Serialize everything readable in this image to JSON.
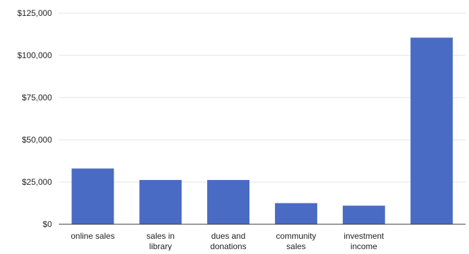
{
  "chart_data": {
    "type": "bar",
    "title": "",
    "xlabel": "",
    "ylabel": "",
    "categories": [
      "online sales",
      "sales in library",
      "dues and donations",
      "community sales",
      "investment income",
      ""
    ],
    "category_lines": [
      [
        "online sales"
      ],
      [
        "sales in",
        "library"
      ],
      [
        "dues and",
        "donations"
      ],
      [
        "community",
        "sales"
      ],
      [
        "investment",
        "income"
      ],
      []
    ],
    "values": [
      33000,
      26200,
      26200,
      12500,
      11000,
      110500
    ],
    "ylim": [
      0,
      125000
    ],
    "yticks": [
      0,
      25000,
      50000,
      75000,
      100000,
      125000
    ],
    "ytick_labels": [
      "$0",
      "$25,000",
      "$50,000",
      "$75,000",
      "$100,000",
      "$125,000"
    ],
    "grid": true,
    "legend": "none",
    "bar_color": "#4a6bc4",
    "grid_color": "#e3e3e3",
    "axis_color": "#333333",
    "text_color": "#222222"
  }
}
